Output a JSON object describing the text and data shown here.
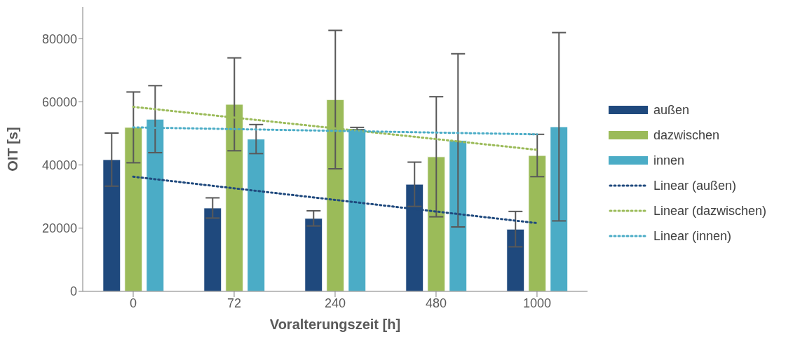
{
  "chart_data": {
    "type": "bar",
    "xlabel": "Voralterungszeit [h]",
    "ylabel": "OIT [s]",
    "categories": [
      "0",
      "72",
      "240",
      "480",
      "1000"
    ],
    "series": [
      {
        "name": "außen",
        "color": "#1f497d",
        "values": [
          41700,
          26400,
          23100,
          33900,
          19700
        ],
        "errors": [
          8400,
          3200,
          2400,
          7000,
          5600
        ]
      },
      {
        "name": "dazwischen",
        "color": "#9bbb59",
        "values": [
          51900,
          59200,
          60700,
          42600,
          43000
        ],
        "errors": [
          11200,
          14700,
          21900,
          19000,
          6700
        ]
      },
      {
        "name": "innen",
        "color": "#4bacc6",
        "values": [
          54500,
          48200,
          51500,
          47800,
          52100
        ],
        "errors": [
          10600,
          4600,
          400,
          27400,
          29800
        ]
      },
      {
        "name": "Linear (außen)",
        "type": "line",
        "line_style": "dotted",
        "color": "#1f497d",
        "values": [
          36300,
          null,
          null,
          null,
          21600
        ]
      },
      {
        "name": "Linear (dazwischen)",
        "type": "line",
        "line_style": "dotted",
        "color": "#9bbb59",
        "values": [
          58400,
          null,
          null,
          null,
          44800
        ]
      },
      {
        "name": "Linear (innen)",
        "type": "line",
        "line_style": "dotted",
        "color": "#4bacc6",
        "values": [
          51900,
          null,
          null,
          null,
          49700
        ]
      }
    ],
    "ylim": [
      0,
      90000
    ],
    "yticks": [
      0,
      20000,
      40000,
      60000,
      80000
    ],
    "legend": "right",
    "marker": "none"
  }
}
